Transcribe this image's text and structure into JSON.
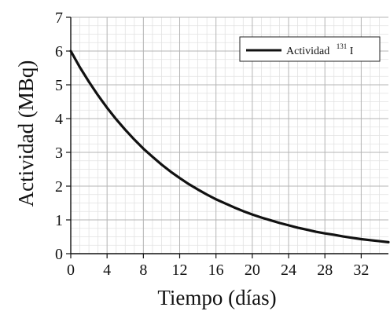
{
  "chart_data": {
    "type": "line",
    "xlabel": "Tiempo (días)",
    "ylabel": "Actividad (MBq)",
    "xlim": [
      0,
      35
    ],
    "ylim": [
      0,
      7
    ],
    "x_ticks": [
      0,
      4,
      8,
      12,
      16,
      20,
      24,
      28,
      32
    ],
    "y_ticks": [
      0,
      1,
      2,
      3,
      4,
      5,
      6,
      7
    ],
    "x_tick_labels": [
      "0",
      "4",
      "8",
      "12",
      "16",
      "20",
      "24",
      "28",
      "32"
    ],
    "y_tick_labels": [
      "0",
      "1",
      "2",
      "3",
      "4",
      "5",
      "6",
      "7"
    ],
    "grid": true,
    "legend": {
      "position": "top-right",
      "label": "Actividad",
      "superscript": "131",
      "suffix": "I"
    },
    "series": [
      {
        "name": "Actividad 131I",
        "color": "#111111",
        "x": [
          0,
          1,
          2,
          3,
          4,
          5,
          6,
          7,
          8,
          9,
          10,
          11,
          12,
          13,
          14,
          15,
          16,
          17,
          18,
          19,
          20,
          21,
          22,
          23,
          24,
          25,
          26,
          27,
          28,
          29,
          30,
          31,
          32,
          33,
          34,
          35
        ],
        "y": [
          6.0,
          5.52,
          5.09,
          4.69,
          4.32,
          3.98,
          3.67,
          3.38,
          3.11,
          2.87,
          2.64,
          2.43,
          2.24,
          2.06,
          1.9,
          1.75,
          1.61,
          1.49,
          1.37,
          1.26,
          1.16,
          1.07,
          0.99,
          0.91,
          0.84,
          0.77,
          0.71,
          0.65,
          0.6,
          0.56,
          0.51,
          0.47,
          0.43,
          0.4,
          0.37,
          0.34
        ]
      }
    ]
  }
}
